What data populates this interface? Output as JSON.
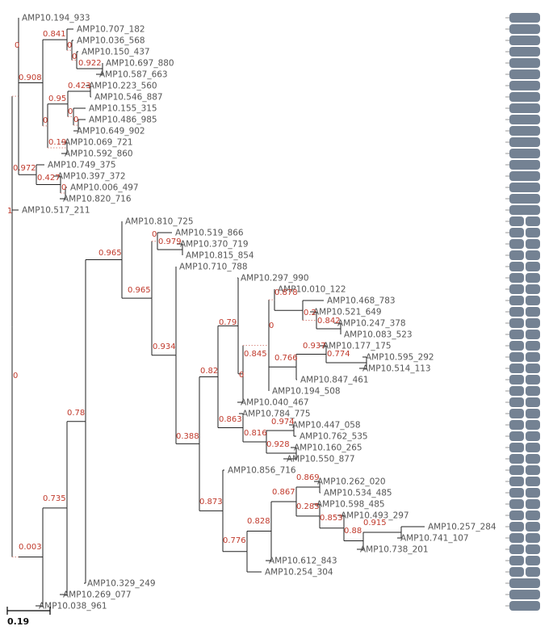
{
  "scale_label": "0.19",
  "colors": {
    "block": "#748293",
    "branch": "#222222",
    "support": "#c0392b",
    "leaf": "#555555"
  },
  "tree": {
    "s": "1",
    "c": [
      {
        "s": "0",
        "c": [
          {
            "n": "AMP10.194_933"
          },
          {
            "s": "0.908",
            "c": [
              {
                "s": "0.841",
                "c": [
                  {
                    "n": "AMP10.707_182"
                  },
                  {
                    "s": "0",
                    "c": [
                      {
                        "n": "AMP10.036_568"
                      },
                      {
                        "s": "0",
                        "c": [
                          {
                            "n": "AMP10.150_437"
                          },
                          {
                            "s": "0.922",
                            "c": [
                              {
                                "n": "AMP10.697_880"
                              },
                              {
                                "n": "AMP10.587_663"
                              }
                            ]
                          }
                        ]
                      }
                    ]
                  }
                ]
              },
              {
                "s": "0",
                "c": [
                  {
                    "s": "0.95",
                    "c": [
                      {
                        "s": "0.423",
                        "c": [
                          {
                            "n": "AMP10.223_560"
                          },
                          {
                            "n": "AMP10.546_887"
                          }
                        ]
                      },
                      {
                        "s": "0",
                        "c": [
                          {
                            "n": "AMP10.155_315"
                          },
                          {
                            "s": "0",
                            "c": [
                              {
                                "n": "AMP10.486_985"
                              },
                              {
                                "n": "AMP10.649_902"
                              }
                            ]
                          }
                        ]
                      }
                    ]
                  },
                  {
                    "s": "0.19",
                    "c": [
                      {
                        "n": "AMP10.069_721"
                      },
                      {
                        "n": "AMP10.592_860"
                      }
                    ]
                  }
                ]
              }
            ]
          },
          {
            "s": "0.972",
            "c": [
              {
                "n": "AMP10.749_375"
              },
              {
                "s": "0.427",
                "c": [
                  {
                    "n": "AMP10.397_372"
                  },
                  {
                    "s": "0",
                    "c": [
                      {
                        "n": "AMP10.006_497"
                      },
                      {
                        "n": "AMP10.820_716"
                      }
                    ]
                  }
                ]
              }
            ]
          }
        ]
      },
      {
        "n": "AMP10.517_211"
      },
      {
        "s": "0",
        "c": [
          {
            "s": "0.003",
            "c": [
              {
                "s": "0.735",
                "c": [
                  {
                    "s": "0.78",
                    "c": [
                      {
                        "s": "0.965",
                        "c": [
                          {
                            "n": "AMP10.810_725"
                          },
                          {
                            "s": "0.965",
                            "c": [
                              {
                                "s": "0",
                                "c": [
                                  {
                                    "n": "AMP10.519_866"
                                  },
                                  {
                                    "s": "0.979",
                                    "c": [
                                      {
                                        "n": "AMP10.370_719"
                                      },
                                      {
                                        "n": "AMP10.815_854"
                                      }
                                    ]
                                  }
                                ]
                              },
                              {
                                "s": "0.934",
                                "c": [
                                  {
                                    "n": "AMP10.710_788"
                                  },
                                  {
                                    "s": "0.388",
                                    "c": [
                                      {
                                        "s": "0.82",
                                        "c": [
                                          {
                                            "s": "0.79",
                                            "c": [
                                              {
                                                "n": "AMP10.297_990"
                                              },
                                              {
                                                "s": "0.845",
                                                "c": [
                                                  {
                                                    "s": "0",
                                                    "c": [
                                                      {
                                                        "s": "0",
                                                        "c": [
                                                          {
                                                            "n": "AMP10.010_122"
                                                          },
                                                          {
                                                            "s": "0.878",
                                                            "c": [
                                                              {
                                                                "n": "AMP10.468_783"
                                                              },
                                                              {
                                                                "s": "0.2",
                                                                "c": [
                                                                  {
                                                                    "n": "AMP10.521_649"
                                                                  },
                                                                  {
                                                                    "s": "0.842",
                                                                    "c": [
                                                                      {
                                                                        "n": "AMP10.247_378"
                                                                      },
                                                                      {
                                                                        "n": "AMP10.083_523"
                                                                      }
                                                                    ]
                                                                  }
                                                                ]
                                                              }
                                                            ]
                                                          }
                                                        ]
                                                      },
                                                      {
                                                        "s": "0.766",
                                                        "c": [
                                                          {
                                                            "s": "0.937",
                                                            "c": [
                                                              {
                                                                "n": "AMP10.177_175"
                                                              },
                                                              {
                                                                "s": "0.774",
                                                                "c": [
                                                                  {
                                                                    "n": "AMP10.595_292"
                                                                  },
                                                                  {
                                                                    "n": "AMP10.514_113"
                                                                  }
                                                                ]
                                                              }
                                                            ]
                                                          },
                                                          {
                                                            "n": "AMP10.847_461"
                                                          }
                                                        ]
                                                      },
                                                      {
                                                        "n": "AMP10.194_508"
                                                      }
                                                    ]
                                                  },
                                                  {
                                                    "n": "AMP10.040_467"
                                                  }
                                                ]
                                              }
                                            ]
                                          },
                                          {
                                            "s": "0.863",
                                            "c": [
                                              {
                                                "n": "AMP10.784_775"
                                              },
                                              {
                                                "s": "0.816",
                                                "c": [
                                                  {
                                                    "s": "0.974",
                                                    "c": [
                                                      {
                                                        "n": "AMP10.447_058"
                                                      },
                                                      {
                                                        "n": "AMP10.762_535"
                                                      }
                                                    ]
                                                  },
                                                  {
                                                    "s": "0.928",
                                                    "c": [
                                                      {
                                                        "n": "AMP10.160_265"
                                                      },
                                                      {
                                                        "n": "AMP10.550_877"
                                                      }
                                                    ]
                                                  }
                                                ]
                                              }
                                            ]
                                          }
                                        ]
                                      },
                                      {
                                        "s": "0.873",
                                        "c": [
                                          {
                                            "n": "AMP10.856_716"
                                          },
                                          {
                                            "s": "0.776",
                                            "c": [
                                              {
                                                "s": "0.828",
                                                "c": [
                                                  {
                                                    "s": "0.867",
                                                    "c": [
                                                      {
                                                        "s": "0.869",
                                                        "c": [
                                                          {
                                                            "n": "AMP10.262_020"
                                                          },
                                                          {
                                                            "n": "AMP10.534_485"
                                                          }
                                                        ]
                                                      },
                                                      {
                                                        "s": "0.285",
                                                        "c": [
                                                          {
                                                            "n": "AMP10.598_485"
                                                          },
                                                          {
                                                            "s": "0.853",
                                                            "c": [
                                                              {
                                                                "n": "AMP10.493_297"
                                                              },
                                                              {
                                                                "s": "0.88",
                                                                "c": [
                                                                  {
                                                                    "s": "0.915",
                                                                    "c": [
                                                                      {
                                                                        "n": "AMP10.257_284"
                                                                      },
                                                                      {
                                                                        "n": "AMP10.741_107"
                                                                      }
                                                                    ]
                                                                  },
                                                                  {
                                                                    "n": "AMP10.738_201"
                                                                  }
                                                                ]
                                                              }
                                                            ]
                                                          }
                                                        ]
                                                      }
                                                    ]
                                                  },
                                                  {
                                                    "n": "AMP10.612_843"
                                                  }
                                                ]
                                              },
                                              {
                                                "n": "AMP10.254_304"
                                              }
                                            ]
                                          }
                                        ]
                                      }
                                    ]
                                  }
                                ]
                              }
                            ]
                          }
                        ]
                      },
                      {
                        "n": "AMP10.329_249"
                      }
                    ]
                  },
                  {
                    "n": "AMP10.269_077"
                  }
                ]
              },
              {
                "n": "AMP10.038_961"
              }
            ]
          }
        ]
      }
    ]
  }
}
